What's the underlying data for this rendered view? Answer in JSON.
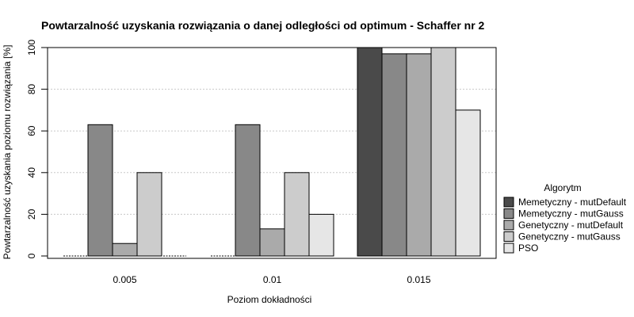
{
  "chart_data": {
    "type": "bar",
    "title": "Powtarzalność uzyskania rozwiązania o danej odległości od optimum - Schaffer nr 2",
    "xlabel": "Poziom dokładności",
    "ylabel": "Powtarzalność uzyskania poziomu rozwiązania [%]",
    "categories": [
      "0.005",
      "0.01",
      "0.015"
    ],
    "ylim": [
      0,
      100
    ],
    "yticks": [
      0,
      20,
      40,
      60,
      80,
      100
    ],
    "grid": true,
    "legend_title": "Algorytm",
    "legend_position": "right",
    "series": [
      {
        "name": "Memetyczny - mutDefault",
        "color": "#4a4a4a",
        "values": [
          0,
          0,
          100
        ]
      },
      {
        "name": "Memetyczny - mutGauss",
        "color": "#888888",
        "values": [
          63,
          63,
          97
        ]
      },
      {
        "name": "Genetyczny - mutDefault",
        "color": "#aaaaaa",
        "values": [
          6,
          13,
          97
        ]
      },
      {
        "name": "Genetyczny - mutGauss",
        "color": "#cccccc",
        "values": [
          40,
          40,
          100
        ]
      },
      {
        "name": "PSO",
        "color": "#e6e6e6",
        "values": [
          0,
          20,
          70
        ]
      }
    ]
  }
}
